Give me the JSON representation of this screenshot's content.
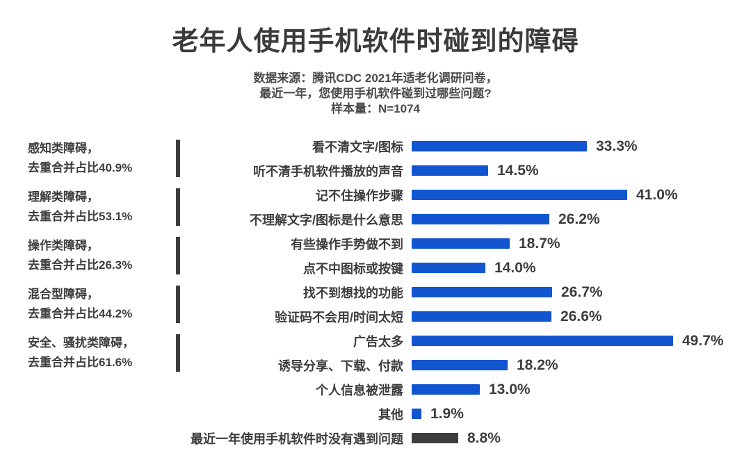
{
  "title": "老年人使用手机软件时碰到的障碍",
  "subtitle": {
    "line1": "数据来源：腾讯CDC 2021年适老化调研问卷，",
    "line2": "最近一年，您使用手机软件碰到过哪些问题?",
    "line3": "样本量：N=1074"
  },
  "colors": {
    "blue": "#1156d0",
    "dark": "#3d3d3d",
    "text": "#3d3d3d"
  },
  "chart_data": {
    "type": "bar",
    "orientation": "horizontal",
    "unit": "%",
    "xlim": [
      0,
      50
    ],
    "legend": "none",
    "grid": false,
    "items": [
      {
        "label": "看不清文字/图标",
        "value": 33.3,
        "display": "33.3%",
        "color": "blue"
      },
      {
        "label": "听不清手机软件播放的声音",
        "value": 14.5,
        "display": "14.5%",
        "color": "blue"
      },
      {
        "label": "记不住操作步骤",
        "value": 41.0,
        "display": "41.0%",
        "color": "blue"
      },
      {
        "label": "不理解文字/图标是什么意思",
        "value": 26.2,
        "display": "26.2%",
        "color": "blue"
      },
      {
        "label": "有些操作手势做不到",
        "value": 18.7,
        "display": "18.7%",
        "color": "blue"
      },
      {
        "label": "点不中图标或按键",
        "value": 14.0,
        "display": "14.0%",
        "color": "blue"
      },
      {
        "label": "找不到想找的功能",
        "value": 26.7,
        "display": "26.7%",
        "color": "blue"
      },
      {
        "label": "验证码不会用/时间太短",
        "value": 26.6,
        "display": "26.6%",
        "color": "blue"
      },
      {
        "label": "广告太多",
        "value": 49.7,
        "display": "49.7%",
        "color": "blue"
      },
      {
        "label": "诱导分享、下载、付款",
        "value": 18.2,
        "display": "18.2%",
        "color": "blue"
      },
      {
        "label": "个人信息被泄露",
        "value": 13.0,
        "display": "13.0%",
        "color": "blue"
      },
      {
        "label": "其他",
        "value": 1.9,
        "display": "1.9%",
        "color": "blue"
      },
      {
        "label": "最近一年使用手机软件时没有遇到问题",
        "value": 8.8,
        "display": "8.8%",
        "color": "dark"
      }
    ],
    "groups": [
      {
        "line1": "感知类障碍，",
        "line2": "去重合并占比40.9%",
        "value": 40.9
      },
      {
        "line1": "理解类障碍，",
        "line2": "去重合并占比53.1%",
        "value": 53.1
      },
      {
        "line1": "操作类障碍，",
        "line2": "去重合并占比26.3%",
        "value": 26.3
      },
      {
        "line1": "混合型障碍，",
        "line2": "去重合并占比44.2%",
        "value": 44.2
      },
      {
        "line1": "安全、骚扰类障碍，",
        "line2": "去重合并占比61.6%",
        "value": 61.6
      }
    ]
  }
}
